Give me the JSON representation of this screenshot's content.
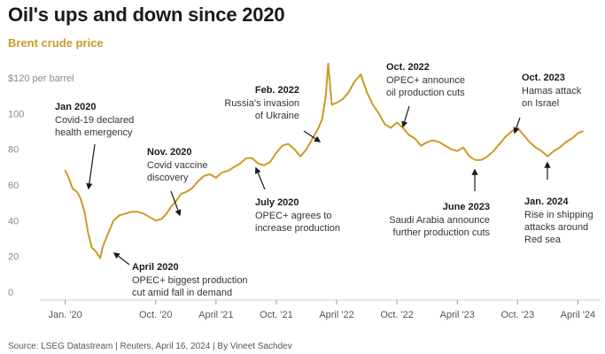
{
  "title": "Oil's ups and down since 2020",
  "subtitle": "Brent crude price",
  "source": "Source: LSEG Datastream | Reuters, April 16, 2024 | By Vineet Sachdev",
  "colors": {
    "line": "#c99b26",
    "text": "#1a1a1a",
    "muted": "#8a8a8a",
    "arrow": "#1a1a1a"
  },
  "chart_data": {
    "type": "line",
    "title": "Oil's ups and down since 2020",
    "subtitle": "Brent crude price",
    "ylabel": "$120 per barrel",
    "ylim": [
      0,
      120
    ],
    "xlim": [
      2019.9,
      2024.35
    ],
    "grid": false,
    "y_ticks": [
      {
        "value": 120,
        "label": "$120 per barrel"
      },
      {
        "value": 100,
        "label": "100"
      },
      {
        "value": 80,
        "label": "80"
      },
      {
        "value": 60,
        "label": "60"
      },
      {
        "value": 40,
        "label": "40"
      },
      {
        "value": 20,
        "label": "20"
      },
      {
        "value": 0,
        "label": "0"
      }
    ],
    "x_ticks": [
      {
        "value": 2020.0,
        "label": "Jan. '20"
      },
      {
        "value": 2020.75,
        "label": "Oct. '20"
      },
      {
        "value": 2021.25,
        "label": "April '21"
      },
      {
        "value": 2021.75,
        "label": "Oct. '21"
      },
      {
        "value": 2022.25,
        "label": "April '22"
      },
      {
        "value": 2022.75,
        "label": "Oct. '22"
      },
      {
        "value": 2023.25,
        "label": "April '23"
      },
      {
        "value": 2023.75,
        "label": "Oct. '23"
      },
      {
        "value": 2024.25,
        "label": "April '24"
      }
    ],
    "series": [
      {
        "x": [
          2020.0,
          2020.03,
          2020.06,
          2020.1,
          2020.13,
          2020.16,
          2020.19,
          2020.22,
          2020.25,
          2020.27,
          2020.29,
          2020.31,
          2020.35,
          2020.4,
          2020.45,
          2020.5,
          2020.55,
          2020.6,
          2020.65,
          2020.7,
          2020.75,
          2020.8,
          2020.84,
          2020.88,
          2020.92,
          2020.96,
          2021.0,
          2021.05,
          2021.1,
          2021.15,
          2021.2,
          2021.25,
          2021.3,
          2021.35,
          2021.4,
          2021.45,
          2021.5,
          2021.55,
          2021.6,
          2021.65,
          2021.7,
          2021.75,
          2021.8,
          2021.85,
          2021.9,
          2021.95,
          2022.0,
          2022.05,
          2022.1,
          2022.13,
          2022.16,
          2022.18,
          2022.21,
          2022.25,
          2022.3,
          2022.35,
          2022.4,
          2022.45,
          2022.5,
          2022.55,
          2022.6,
          2022.65,
          2022.7,
          2022.75,
          2022.8,
          2022.85,
          2022.9,
          2022.95,
          2023.0,
          2023.05,
          2023.1,
          2023.15,
          2023.2,
          2023.25,
          2023.3,
          2023.35,
          2023.4,
          2023.45,
          2023.5,
          2023.55,
          2023.6,
          2023.65,
          2023.7,
          2023.75,
          2023.8,
          2023.85,
          2023.9,
          2023.95,
          2024.0,
          2024.05,
          2024.1,
          2024.15,
          2024.2,
          2024.25,
          2024.29
        ],
        "y": [
          68,
          64,
          58,
          56,
          52,
          45,
          33,
          25,
          23,
          21,
          19,
          25,
          32,
          40,
          43,
          44,
          45,
          45,
          44,
          42,
          40,
          41,
          44,
          48,
          51,
          55,
          56,
          58,
          62,
          65,
          66,
          64,
          67,
          68,
          70,
          72,
          75,
          75,
          72,
          71,
          73,
          78,
          82,
          83,
          80,
          76,
          80,
          86,
          92,
          97,
          110,
          128,
          105,
          106,
          108,
          112,
          118,
          122,
          112,
          105,
          100,
          94,
          92,
          95,
          92,
          88,
          86,
          82,
          84,
          85,
          84,
          82,
          80,
          79,
          81,
          76,
          74,
          74,
          76,
          79,
          83,
          87,
          90,
          92,
          88,
          84,
          81,
          79,
          76,
          79,
          81,
          84,
          86,
          89,
          90
        ]
      }
    ],
    "annotations": [
      {
        "date": "Jan 2020",
        "text": [
          "Covid-19 declared",
          "health emergency"
        ]
      },
      {
        "date": "April 2020",
        "text": [
          "OPEC+ biggest production",
          "cut amid fall in demand"
        ]
      },
      {
        "date": "Nov. 2020",
        "text": [
          "Covid vaccine",
          "discovery"
        ]
      },
      {
        "date": "July 2020",
        "text": [
          "OPEC+ agrees to",
          "increase production"
        ]
      },
      {
        "date": "Feb. 2022",
        "text": [
          "Russia's  invasion",
          "of Ukraine"
        ]
      },
      {
        "date": "Oct. 2022",
        "text": [
          "OPEC+ announce",
          "oil production cuts"
        ]
      },
      {
        "date": "June 2023",
        "text": [
          "Saudi Arabia announce",
          "further production cuts"
        ]
      },
      {
        "date": "Oct. 2023",
        "text": [
          "Hamas attack",
          "on Israel"
        ]
      },
      {
        "date": "Jan. 2024",
        "text": [
          "Rise in shipping",
          "attacks around",
          "Red sea"
        ]
      }
    ]
  }
}
